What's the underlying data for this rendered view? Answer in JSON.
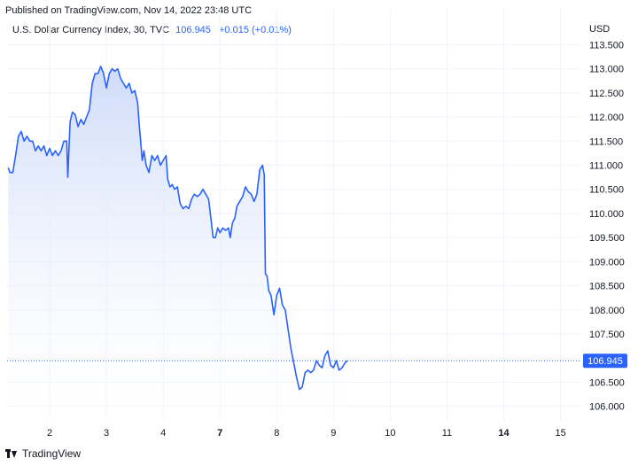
{
  "header": {
    "published": "Published on TradingView.com, Nov 14, 2022 23:48 UTC"
  },
  "symbol": {
    "title": "U.S. Dollar Currency Index, 30, TVC",
    "price": "106.945",
    "change": "+0.015 (+0.01%)"
  },
  "footer": {
    "brand": "TradingView"
  },
  "colors": {
    "line": "#2962ff",
    "fill_top": "#c9d7f8",
    "fill_bottom": "#ffffff",
    "grid": "#f0f3fa",
    "last_label_bg": "#2962ff"
  },
  "chart_data": {
    "type": "area",
    "currency": "USD",
    "last_value": 106.945,
    "last_label": "106.945",
    "ylim": [
      105.7,
      113.6
    ],
    "y_ticks": [
      "106.000",
      "106.500",
      "107.000",
      "107.500",
      "108.000",
      "108.500",
      "109.000",
      "109.500",
      "110.000",
      "110.500",
      "111.000",
      "111.500",
      "112.000",
      "112.500",
      "113.000",
      "113.500"
    ],
    "x_ticks": [
      {
        "label": "2",
        "x": 1.5,
        "bold": false
      },
      {
        "label": "3",
        "x": 2.5,
        "bold": false
      },
      {
        "label": "4",
        "x": 3.5,
        "bold": false
      },
      {
        "label": "7",
        "x": 4.5,
        "bold": true
      },
      {
        "label": "8",
        "x": 5.5,
        "bold": false
      },
      {
        "label": "9",
        "x": 6.5,
        "bold": false
      },
      {
        "label": "10",
        "x": 7.5,
        "bold": false
      },
      {
        "label": "11",
        "x": 8.5,
        "bold": false
      },
      {
        "label": "14",
        "x": 9.5,
        "bold": true
      },
      {
        "label": "15",
        "x": 10.5,
        "bold": false
      }
    ],
    "xlim": [
      0.75,
      10.85
    ],
    "series": [
      {
        "points": [
          [
            0.77,
            110.95
          ],
          [
            0.8,
            110.85
          ],
          [
            0.85,
            110.85
          ],
          [
            0.9,
            111.2
          ],
          [
            0.95,
            111.6
          ],
          [
            1.0,
            111.7
          ],
          [
            1.05,
            111.5
          ],
          [
            1.1,
            111.6
          ],
          [
            1.15,
            111.5
          ],
          [
            1.2,
            111.5
          ],
          [
            1.25,
            111.3
          ],
          [
            1.3,
            111.4
          ],
          [
            1.35,
            111.3
          ],
          [
            1.4,
            111.4
          ],
          [
            1.45,
            111.2
          ],
          [
            1.5,
            111.35
          ],
          [
            1.55,
            111.2
          ],
          [
            1.6,
            111.3
          ],
          [
            1.65,
            111.2
          ],
          [
            1.7,
            111.3
          ],
          [
            1.75,
            111.5
          ],
          [
            1.8,
            111.5
          ],
          [
            1.82,
            110.75
          ],
          [
            1.86,
            111.9
          ],
          [
            1.9,
            112.1
          ],
          [
            1.95,
            112.05
          ],
          [
            2.0,
            111.8
          ],
          [
            2.05,
            111.95
          ],
          [
            2.1,
            111.85
          ],
          [
            2.15,
            112.0
          ],
          [
            2.2,
            112.15
          ],
          [
            2.25,
            112.7
          ],
          [
            2.3,
            112.9
          ],
          [
            2.35,
            112.9
          ],
          [
            2.4,
            113.05
          ],
          [
            2.45,
            112.9
          ],
          [
            2.5,
            112.6
          ],
          [
            2.55,
            112.9
          ],
          [
            2.6,
            113.0
          ],
          [
            2.65,
            112.95
          ],
          [
            2.7,
            113.0
          ],
          [
            2.75,
            112.8
          ],
          [
            2.8,
            112.7
          ],
          [
            2.85,
            112.6
          ],
          [
            2.9,
            112.7
          ],
          [
            2.95,
            112.5
          ],
          [
            3.0,
            112.55
          ],
          [
            3.05,
            112.3
          ],
          [
            3.08,
            111.8
          ],
          [
            3.1,
            111.55
          ],
          [
            3.13,
            111.1
          ],
          [
            3.16,
            111.3
          ],
          [
            3.2,
            111.0
          ],
          [
            3.25,
            110.85
          ],
          [
            3.3,
            111.2
          ],
          [
            3.35,
            111.1
          ],
          [
            3.4,
            111.2
          ],
          [
            3.45,
            111.0
          ],
          [
            3.5,
            111.1
          ],
          [
            3.55,
            111.2
          ],
          [
            3.58,
            110.7
          ],
          [
            3.62,
            110.55
          ],
          [
            3.66,
            110.6
          ],
          [
            3.7,
            110.5
          ],
          [
            3.75,
            110.55
          ],
          [
            3.8,
            110.2
          ],
          [
            3.85,
            110.1
          ],
          [
            3.9,
            110.15
          ],
          [
            3.95,
            110.1
          ],
          [
            4.0,
            110.3
          ],
          [
            4.05,
            110.4
          ],
          [
            4.1,
            110.35
          ],
          [
            4.15,
            110.4
          ],
          [
            4.2,
            110.5
          ],
          [
            4.25,
            110.4
          ],
          [
            4.3,
            110.3
          ],
          [
            4.34,
            109.9
          ],
          [
            4.38,
            109.5
          ],
          [
            4.42,
            109.5
          ],
          [
            4.46,
            109.7
          ],
          [
            4.5,
            109.6
          ],
          [
            4.55,
            109.7
          ],
          [
            4.6,
            109.65
          ],
          [
            4.65,
            109.7
          ],
          [
            4.68,
            109.5
          ],
          [
            4.72,
            109.8
          ],
          [
            4.76,
            109.9
          ],
          [
            4.8,
            110.15
          ],
          [
            4.85,
            110.25
          ],
          [
            4.9,
            110.35
          ],
          [
            4.95,
            110.55
          ],
          [
            5.0,
            110.45
          ],
          [
            5.05,
            110.4
          ],
          [
            5.1,
            110.25
          ],
          [
            5.15,
            110.4
          ],
          [
            5.2,
            110.9
          ],
          [
            5.25,
            111.0
          ],
          [
            5.28,
            110.8
          ],
          [
            5.3,
            108.75
          ],
          [
            5.33,
            108.7
          ],
          [
            5.36,
            108.4
          ],
          [
            5.4,
            108.3
          ],
          [
            5.45,
            107.9
          ],
          [
            5.5,
            108.3
          ],
          [
            5.55,
            108.45
          ],
          [
            5.6,
            108.1
          ],
          [
            5.65,
            108.0
          ],
          [
            5.7,
            107.6
          ],
          [
            5.75,
            107.2
          ],
          [
            5.8,
            106.9
          ],
          [
            5.85,
            106.6
          ],
          [
            5.9,
            106.35
          ],
          [
            5.95,
            106.4
          ],
          [
            6.0,
            106.7
          ],
          [
            6.05,
            106.75
          ],
          [
            6.1,
            106.7
          ],
          [
            6.15,
            106.75
          ],
          [
            6.2,
            106.95
          ],
          [
            6.25,
            106.85
          ],
          [
            6.3,
            106.8
          ],
          [
            6.35,
            107.05
          ],
          [
            6.4,
            107.15
          ],
          [
            6.45,
            106.85
          ],
          [
            6.5,
            106.8
          ],
          [
            6.55,
            106.95
          ],
          [
            6.6,
            106.75
          ],
          [
            6.65,
            106.8
          ],
          [
            6.7,
            106.9
          ],
          [
            6.75,
            106.95
          ]
        ]
      }
    ]
  }
}
